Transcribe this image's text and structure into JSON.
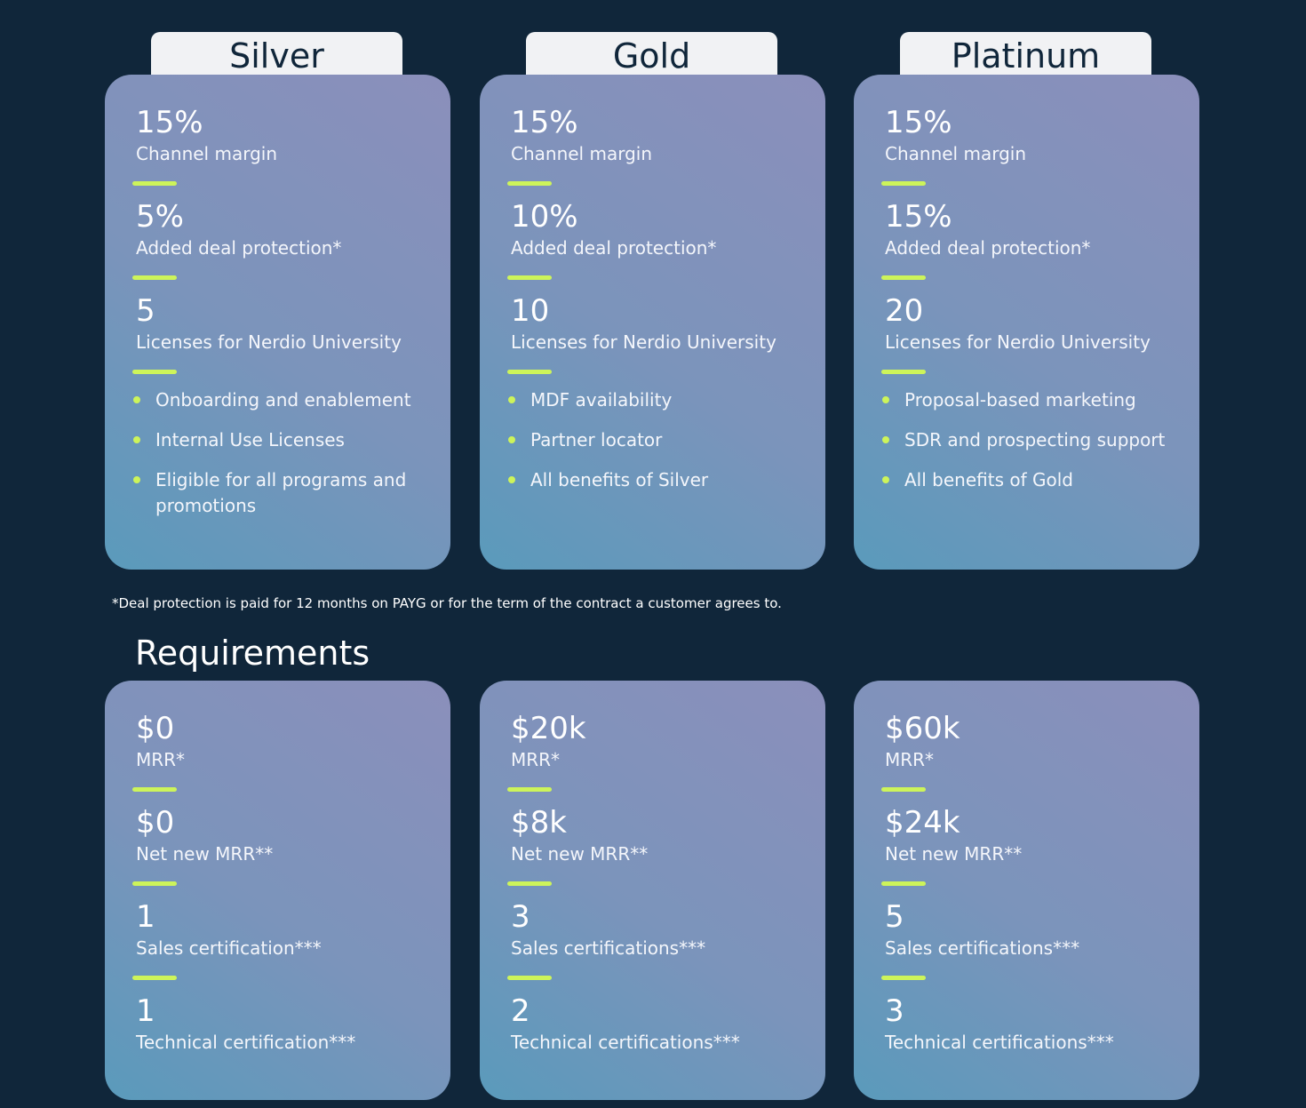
{
  "tiers": [
    {
      "name": "Silver",
      "benefits": [
        {
          "value": "15%",
          "label": "Channel margin"
        },
        {
          "value": "5%",
          "label": "Added deal protection*"
        },
        {
          "value": "5",
          "label": "Licenses for Nerdio University"
        }
      ],
      "bullets": [
        "Onboarding and enablement",
        "Internal Use Licenses",
        "Eligible for all programs and promotions"
      ],
      "requirements": [
        {
          "value": "$0",
          "label": "MRR*"
        },
        {
          "value": "$0",
          "label": "Net new MRR**"
        },
        {
          "value": "1",
          "label": "Sales certification***"
        },
        {
          "value": "1",
          "label": "Technical certification***"
        }
      ]
    },
    {
      "name": "Gold",
      "benefits": [
        {
          "value": "15%",
          "label": "Channel margin"
        },
        {
          "value": "10%",
          "label": "Added deal protection*"
        },
        {
          "value": "10",
          "label": "Licenses for Nerdio University"
        }
      ],
      "bullets": [
        "MDF availability",
        "Partner locator",
        "All benefits of Silver"
      ],
      "requirements": [
        {
          "value": "$20k",
          "label": "MRR*"
        },
        {
          "value": "$8k",
          "label": "Net new MRR**"
        },
        {
          "value": "3",
          "label": "Sales certifications***"
        },
        {
          "value": "2",
          "label": "Technical certifications***"
        }
      ]
    },
    {
      "name": "Platinum",
      "benefits": [
        {
          "value": "15%",
          "label": "Channel margin"
        },
        {
          "value": "15%",
          "label": "Added deal protection*"
        },
        {
          "value": "20",
          "label": "Licenses for Nerdio University"
        }
      ],
      "bullets": [
        "Proposal-based marketing",
        "SDR and prospecting support",
        "All benefits of Gold"
      ],
      "requirements": [
        {
          "value": "$60k",
          "label": "MRR*"
        },
        {
          "value": "$24k",
          "label": "Net new MRR**"
        },
        {
          "value": "5",
          "label": "Sales certifications***"
        },
        {
          "value": "3",
          "label": "Technical certifications***"
        }
      ]
    }
  ],
  "footnote": "*Deal protection is paid for 12 months on PAYG or for the term of the contract a customer agrees to.",
  "requirements_title": "Requirements",
  "colors": {
    "background": "#10263a",
    "accent": "#cdf45a"
  }
}
